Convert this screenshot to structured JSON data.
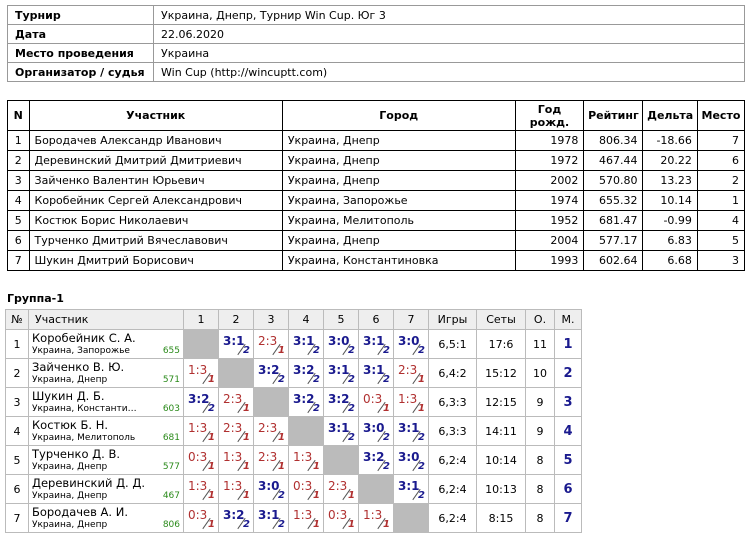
{
  "info": [
    {
      "label": "Турнир",
      "value": "Украина, Днепр, Турнир Win Cup. Юг 3"
    },
    {
      "label": "Дата",
      "value": "22.06.2020"
    },
    {
      "label": "Место проведения",
      "value": "Украина"
    },
    {
      "label": "Организатор / судья",
      "value": "Win Cup (http://wincuptt.com)"
    }
  ],
  "participants": {
    "headers": [
      "N",
      "Участник",
      "Город",
      "Год рожд.",
      "Рейтинг",
      "Дельта",
      "Место"
    ],
    "rows": [
      {
        "n": "1",
        "name": "Бородачев Александр Иванович",
        "city": "Украина, Днепр",
        "year": "1978",
        "rating": "806.34",
        "delta": "-18.66",
        "place": "7"
      },
      {
        "n": "2",
        "name": "Деревинский Дмитрий Дмитриевич",
        "city": "Украина, Днепр",
        "year": "1972",
        "rating": "467.44",
        "delta": "20.22",
        "place": "6"
      },
      {
        "n": "3",
        "name": "Зайченко Валентин Юрьевич",
        "city": "Украина, Днепр",
        "year": "2002",
        "rating": "570.80",
        "delta": "13.23",
        "place": "2"
      },
      {
        "n": "4",
        "name": "Коробейник Сергей Александрович",
        "city": "Украина, Запорожье",
        "year": "1974",
        "rating": "655.32",
        "delta": "10.14",
        "place": "1"
      },
      {
        "n": "5",
        "name": "Костюк Борис Николаевич",
        "city": "Украина, Мелитополь",
        "year": "1952",
        "rating": "681.47",
        "delta": "-0.99",
        "place": "4"
      },
      {
        "n": "6",
        "name": "Турченко Дмитрий Вячеславович",
        "city": "Украина, Днепр",
        "year": "2004",
        "rating": "577.17",
        "delta": "6.83",
        "place": "5"
      },
      {
        "n": "7",
        "name": "Шукин Дмитрий Борисович",
        "city": "Украина, Константиновка",
        "year": "1993",
        "rating": "602.64",
        "delta": "6.68",
        "place": "3"
      }
    ]
  },
  "group": {
    "title": "Группа-1",
    "headers": [
      "№",
      "Участник",
      "1",
      "2",
      "3",
      "4",
      "5",
      "6",
      "7",
      "Игры",
      "Сеты",
      "О.",
      "М."
    ],
    "rows": [
      {
        "n": "1",
        "name": "Коробейник С. А.",
        "city": "Украина, Запорожье",
        "rating": "655",
        "cells": [
          null,
          {
            "s": "3:1",
            "p": "2",
            "w": true
          },
          {
            "s": "2:3",
            "p": "1",
            "w": false
          },
          {
            "s": "3:1",
            "p": "2",
            "w": true
          },
          {
            "s": "3:0",
            "p": "2",
            "w": true
          },
          {
            "s": "3:1",
            "p": "2",
            "w": true
          },
          {
            "s": "3:0",
            "p": "2",
            "w": true
          }
        ],
        "games": "6,5:1",
        "sets": "17:6",
        "points": "11",
        "place": "1"
      },
      {
        "n": "2",
        "name": "Зайченко В. Ю.",
        "city": "Украина, Днепр",
        "rating": "571",
        "cells": [
          {
            "s": "1:3",
            "p": "1",
            "w": false
          },
          null,
          {
            "s": "3:2",
            "p": "2",
            "w": true
          },
          {
            "s": "3:2",
            "p": "2",
            "w": true
          },
          {
            "s": "3:1",
            "p": "2",
            "w": true
          },
          {
            "s": "3:1",
            "p": "2",
            "w": true
          },
          {
            "s": "2:3",
            "p": "1",
            "w": false
          }
        ],
        "games": "6,4:2",
        "sets": "15:12",
        "points": "10",
        "place": "2"
      },
      {
        "n": "3",
        "name": "Шукин Д. Б.",
        "city": "Украина, Константи…",
        "rating": "603",
        "cells": [
          {
            "s": "3:2",
            "p": "2",
            "w": true
          },
          {
            "s": "2:3",
            "p": "1",
            "w": false
          },
          null,
          {
            "s": "3:2",
            "p": "2",
            "w": true
          },
          {
            "s": "3:2",
            "p": "2",
            "w": true
          },
          {
            "s": "0:3",
            "p": "1",
            "w": false
          },
          {
            "s": "1:3",
            "p": "1",
            "w": false
          }
        ],
        "games": "6,3:3",
        "sets": "12:15",
        "points": "9",
        "place": "3"
      },
      {
        "n": "4",
        "name": "Костюк Б. Н.",
        "city": "Украина, Мелитополь",
        "rating": "681",
        "cells": [
          {
            "s": "1:3",
            "p": "1",
            "w": false
          },
          {
            "s": "2:3",
            "p": "1",
            "w": false
          },
          {
            "s": "2:3",
            "p": "1",
            "w": false
          },
          null,
          {
            "s": "3:1",
            "p": "2",
            "w": true
          },
          {
            "s": "3:0",
            "p": "2",
            "w": true
          },
          {
            "s": "3:1",
            "p": "2",
            "w": true
          }
        ],
        "games": "6,3:3",
        "sets": "14:11",
        "points": "9",
        "place": "4"
      },
      {
        "n": "5",
        "name": "Турченко Д. В.",
        "city": "Украина, Днепр",
        "rating": "577",
        "cells": [
          {
            "s": "0:3",
            "p": "1",
            "w": false
          },
          {
            "s": "1:3",
            "p": "1",
            "w": false
          },
          {
            "s": "2:3",
            "p": "1",
            "w": false
          },
          {
            "s": "1:3",
            "p": "1",
            "w": false
          },
          null,
          {
            "s": "3:2",
            "p": "2",
            "w": true
          },
          {
            "s": "3:0",
            "p": "2",
            "w": true
          }
        ],
        "games": "6,2:4",
        "sets": "10:14",
        "points": "8",
        "place": "5"
      },
      {
        "n": "6",
        "name": "Деревинский Д. Д.",
        "city": "Украина, Днепр",
        "rating": "467",
        "cells": [
          {
            "s": "1:3",
            "p": "1",
            "w": false
          },
          {
            "s": "1:3",
            "p": "1",
            "w": false
          },
          {
            "s": "3:0",
            "p": "2",
            "w": true
          },
          {
            "s": "0:3",
            "p": "1",
            "w": false
          },
          {
            "s": "2:3",
            "p": "1",
            "w": false
          },
          null,
          {
            "s": "3:1",
            "p": "2",
            "w": true
          }
        ],
        "games": "6,2:4",
        "sets": "10:13",
        "points": "8",
        "place": "6"
      },
      {
        "n": "7",
        "name": "Бородачев А. И.",
        "city": "Украина, Днепр",
        "rating": "806",
        "cells": [
          {
            "s": "0:3",
            "p": "1",
            "w": false
          },
          {
            "s": "3:2",
            "p": "2",
            "w": true
          },
          {
            "s": "3:1",
            "p": "2",
            "w": true
          },
          {
            "s": "1:3",
            "p": "1",
            "w": false
          },
          {
            "s": "0:3",
            "p": "1",
            "w": false
          },
          {
            "s": "1:3",
            "p": "1",
            "w": false
          },
          null
        ],
        "games": "6,2:4",
        "sets": "8:15",
        "points": "8",
        "place": "7"
      }
    ]
  }
}
